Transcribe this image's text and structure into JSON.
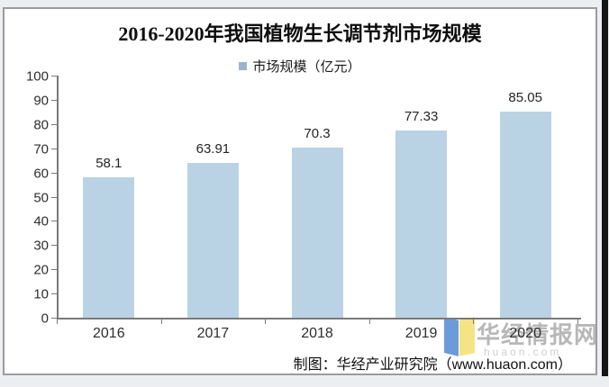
{
  "page": {
    "legend": {
      "label": "市场规模（亿元）"
    },
    "footer": "制图：华经产业研究院（www.huaon.com）",
    "watermark": {
      "text": "华经情报网",
      "subtext": "huaon.com"
    }
  },
  "colors": {
    "bar": "#b9d3e4",
    "legend_marker": "#9db4c8",
    "axis": "#7a7a7a",
    "watermark_text": "#b7b7b7",
    "logo_blue": "#6d9ada",
    "logo_yellow": "#f6e383"
  },
  "chart_data": {
    "type": "bar",
    "title": "2016-2020年我国植物生长调节剂市场规模",
    "categories": [
      "2016",
      "2017",
      "2018",
      "2019",
      "2020"
    ],
    "values": [
      58.1,
      63.91,
      70.3,
      77.33,
      85.05
    ],
    "series_name": "市场规模（亿元）",
    "xlabel": "",
    "ylabel": "",
    "ylim": [
      0,
      100
    ],
    "ytick_step": 10,
    "ytick_labels": [
      "0",
      "10",
      "20",
      "30",
      "40",
      "50",
      "60",
      "70",
      "80",
      "90",
      "100"
    ],
    "data_labels": [
      "58.1",
      "63.91",
      "70.3",
      "77.33",
      "85.05"
    ],
    "legend_position": "top-center",
    "grid": false
  }
}
